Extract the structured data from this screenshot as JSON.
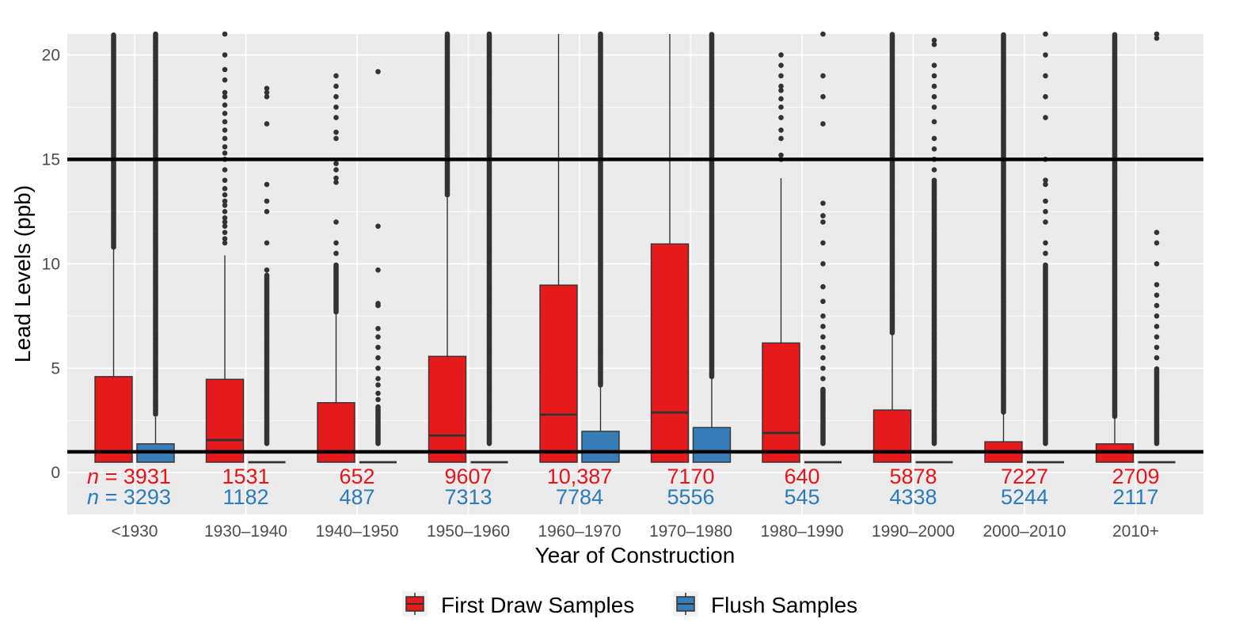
{
  "chart_data": {
    "type": "boxplot",
    "title": "",
    "xlabel": "Year of Construction",
    "ylabel": "Lead Levels (ppb)",
    "ylim": [
      -2,
      21
    ],
    "yticks": [
      0,
      5,
      10,
      15,
      20
    ],
    "grid": true,
    "reference_lines": [
      15,
      1
    ],
    "colors": {
      "first_draw": "#E41A1C",
      "flush": "#377EB8",
      "first_draw_text": "#E8141B",
      "flush_text": "#2B7BC0",
      "panel": "#EBEBEB"
    },
    "n_prefix": "n",
    "n_equals": "=",
    "legend": {
      "placement": "bottom",
      "items": [
        "First Draw Samples",
        "Flush Samples"
      ]
    },
    "categories": [
      "<1930",
      "1930–1940",
      "1940–1950",
      "1950–1960",
      "1960–1970",
      "1970–1980",
      "1980–1990",
      "1990–2000",
      "2000–2010",
      "2010+"
    ],
    "series": [
      {
        "name": "First Draw Samples",
        "n": [
          "3931",
          "1531",
          "652",
          "9607",
          "10,387",
          "7170",
          "640",
          "5878",
          "7227",
          "2709"
        ],
        "boxes": [
          {
            "q1": 0.5,
            "median": 1.0,
            "q3": 4.6,
            "whisker_high": 10.8,
            "outliers_dense": [
              10.8,
              21
            ],
            "outliers": []
          },
          {
            "q1": 0.5,
            "median": 1.56,
            "q3": 4.47,
            "whisker_high": 10.4,
            "outliers_dense": null,
            "outliers": [
              11,
              11.2,
              11.5,
              11.8,
              12,
              12.2,
              12.5,
              12.8,
              13,
              13.3,
              13.6,
              14,
              14.5,
              15,
              15.3,
              15.6,
              16,
              16.4,
              16.8,
              17.2,
              17.6,
              18,
              18.2,
              18.8,
              19.3,
              20,
              21
            ]
          },
          {
            "q1": 0.5,
            "median": 1.0,
            "q3": 3.35,
            "whisker_high": 7.6,
            "outliers_dense": [
              7.7,
              10
            ],
            "outliers": [
              10.5,
              11,
              12,
              13.9,
              14.1,
              14.5,
              14.8,
              16,
              16.3,
              17,
              17.5,
              18,
              18.5,
              19
            ]
          },
          {
            "q1": 0.5,
            "median": 1.78,
            "q3": 5.57,
            "whisker_high": 13.2,
            "outliers_dense": [
              13.3,
              21
            ],
            "outliers": []
          },
          {
            "q1": 0.5,
            "median": 2.78,
            "q3": 8.98,
            "whisker_high": 22,
            "outliers_dense": null,
            "outliers": []
          },
          {
            "q1": 0.5,
            "median": 2.88,
            "q3": 10.95,
            "whisker_high": 22,
            "outliers_dense": null,
            "outliers": []
          },
          {
            "q1": 0.5,
            "median": 1.9,
            "q3": 6.21,
            "whisker_high": 14.1,
            "outliers_dense": null,
            "outliers": [
              15,
              15.2,
              16,
              16.4,
              17,
              17.5,
              17.9,
              18.3,
              18.5,
              19,
              19.5,
              20
            ]
          },
          {
            "q1": 0.5,
            "median": 1.0,
            "q3": 3.0,
            "whisker_high": 6.7,
            "outliers_dense": [
              6.7,
              21
            ],
            "outliers": []
          },
          {
            "q1": 0.5,
            "median": 1.0,
            "q3": 1.48,
            "whisker_high": 2.88,
            "outliers_dense": [
              2.9,
              21
            ],
            "outliers": []
          },
          {
            "q1": 0.5,
            "median": 1.0,
            "q3": 1.38,
            "whisker_high": 2.66,
            "outliers_dense": [
              2.7,
              21
            ],
            "outliers": []
          }
        ]
      },
      {
        "name": "Flush Samples",
        "n": [
          "3293",
          "1182",
          "487",
          "7313",
          "7784",
          "5556",
          "545",
          "4338",
          "5244",
          "2117"
        ],
        "boxes": [
          {
            "q1": 0.5,
            "median": 1.0,
            "q3": 1.38,
            "whisker_high": 2.66,
            "outliers_dense": [
              2.8,
              21
            ],
            "outliers": []
          },
          {
            "q1": 0.5,
            "median": 0.5,
            "q3": 0.5,
            "whisker_high": 0.5,
            "outliers_dense": [
              1.4,
              9.5
            ],
            "outliers": [
              9.7,
              11,
              12.5,
              13,
              13.8,
              16.7,
              18,
              18.2,
              18.4
            ]
          },
          {
            "q1": 0.5,
            "median": 0.5,
            "q3": 0.5,
            "whisker_high": 0.5,
            "outliers_dense": [
              1.4,
              3.2
            ],
            "outliers": [
              3.5,
              3.8,
              4.2,
              4.5,
              5,
              5.5,
              6,
              6.5,
              6.9,
              8,
              8.1,
              9.7,
              11.8,
              19.2
            ]
          },
          {
            "q1": 0.5,
            "median": 0.5,
            "q3": 0.5,
            "whisker_high": 0.5,
            "outliers_dense": [
              1.4,
              21
            ],
            "outliers": []
          },
          {
            "q1": 0.5,
            "median": 1.0,
            "q3": 1.98,
            "whisker_high": 4.14,
            "outliers_dense": [
              4.2,
              21
            ],
            "outliers": []
          },
          {
            "q1": 0.5,
            "median": 1.0,
            "q3": 2.16,
            "whisker_high": 4.56,
            "outliers_dense": [
              4.6,
              21
            ],
            "outliers": []
          },
          {
            "q1": 0.5,
            "median": 0.5,
            "q3": 0.5,
            "whisker_high": 0.5,
            "outliers_dense": [
              1.4,
              4
            ],
            "outliers": [
              4.5,
              5,
              5.5,
              6,
              6.5,
              7,
              7.5,
              8.2,
              8.9,
              10,
              11,
              12,
              12.3,
              12.9,
              16.7,
              18,
              19,
              21
            ]
          },
          {
            "q1": 0.5,
            "median": 0.5,
            "q3": 0.5,
            "whisker_high": 0.5,
            "outliers_dense": [
              1.4,
              14
            ],
            "outliers": [
              14.5,
              15,
              15.5,
              16,
              16.8,
              17.5,
              18,
              18.5,
              19,
              19.5,
              20.5,
              20.7
            ]
          },
          {
            "q1": 0.5,
            "median": 0.5,
            "q3": 0.5,
            "whisker_high": 0.5,
            "outliers_dense": [
              1.4,
              10
            ],
            "outliers": [
              10.5,
              11,
              12,
              12.5,
              13,
              13.8,
              14,
              15,
              17,
              18,
              19,
              20,
              21
            ]
          },
          {
            "q1": 0.5,
            "median": 0.5,
            "q3": 0.5,
            "whisker_high": 0.5,
            "outliers_dense": [
              1.4,
              5
            ],
            "outliers": [
              5.5,
              6,
              6.5,
              7,
              7.5,
              8,
              8.5,
              9,
              10,
              11,
              11.5,
              20.8,
              21
            ]
          }
        ]
      }
    ]
  }
}
